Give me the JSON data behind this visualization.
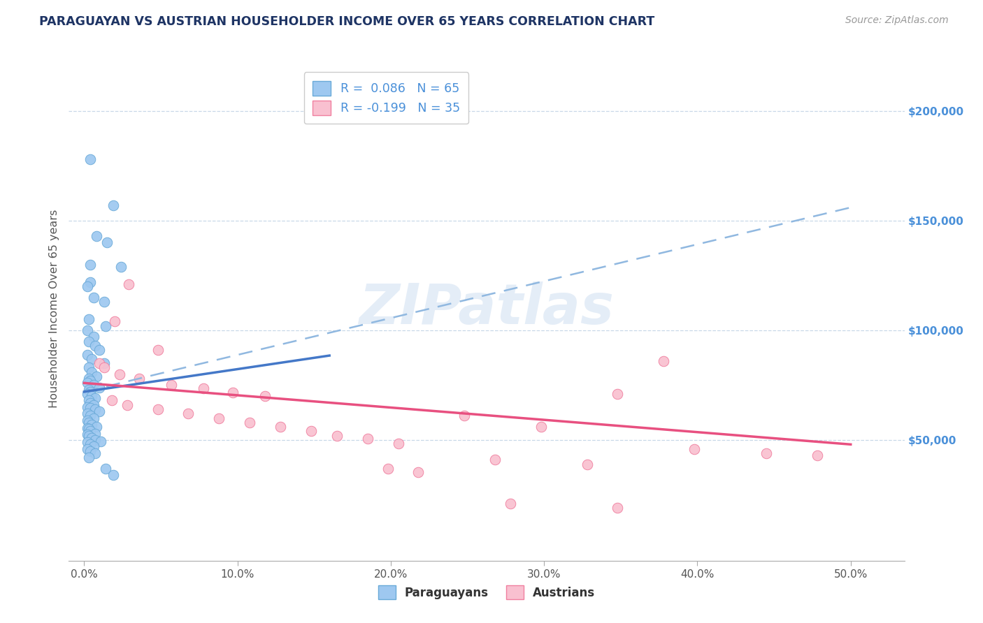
{
  "title": "PARAGUAYAN VS AUSTRIAN HOUSEHOLDER INCOME OVER 65 YEARS CORRELATION CHART",
  "source": "Source: ZipAtlas.com",
  "ylabel": "Householder Income Over 65 years",
  "xtick_labels": [
    "0.0%",
    "10.0%",
    "20.0%",
    "30.0%",
    "40.0%",
    "50.0%"
  ],
  "xtick_vals": [
    0.0,
    0.1,
    0.2,
    0.3,
    0.4,
    0.5
  ],
  "ytick_labels": [
    "$50,000",
    "$100,000",
    "$150,000",
    "$200,000"
  ],
  "ytick_vals": [
    50000,
    100000,
    150000,
    200000
  ],
  "ylim": [
    -5000,
    225000
  ],
  "xlim": [
    -0.01,
    0.535
  ],
  "blue_scatter_color": "#9ec8f0",
  "blue_edge_color": "#6aaad8",
  "pink_scatter_color": "#f9c0d0",
  "pink_edge_color": "#f080a0",
  "blue_solid_color": "#4478c8",
  "blue_dash_color": "#90b8e0",
  "pink_solid_color": "#e85080",
  "grid_color": "#c8d8e8",
  "bg_color": "#ffffff",
  "title_color": "#1e3464",
  "right_tick_color": "#4a90d9",
  "watermark": "ZIPatlas",
  "legend_label_blue": "R =  0.086   N = 65",
  "legend_label_pink": "R = -0.199   N = 35",
  "bottom_label_blue": "Paraguayans",
  "bottom_label_pink": "Austrians",
  "blue_solid_line": [
    [
      0.0,
      72000
    ],
    [
      0.16,
      88500
    ]
  ],
  "blue_dash_line": [
    [
      0.0,
      72000
    ],
    [
      0.5,
      156000
    ]
  ],
  "pink_line": [
    [
      0.0,
      76000
    ],
    [
      0.5,
      48000
    ]
  ],
  "blue_pts": [
    [
      0.004,
      178000
    ],
    [
      0.019,
      157000
    ],
    [
      0.008,
      143000
    ],
    [
      0.015,
      140000
    ],
    [
      0.004,
      130000
    ],
    [
      0.024,
      129000
    ],
    [
      0.004,
      122000
    ],
    [
      0.002,
      120000
    ],
    [
      0.006,
      115000
    ],
    [
      0.013,
      113000
    ],
    [
      0.003,
      105000
    ],
    [
      0.014,
      102000
    ],
    [
      0.002,
      100000
    ],
    [
      0.006,
      97000
    ],
    [
      0.003,
      95000
    ],
    [
      0.007,
      93000
    ],
    [
      0.01,
      91000
    ],
    [
      0.002,
      89000
    ],
    [
      0.005,
      87000
    ],
    [
      0.013,
      85000
    ],
    [
      0.003,
      83000
    ],
    [
      0.005,
      81000
    ],
    [
      0.008,
      79000
    ],
    [
      0.003,
      78000
    ],
    [
      0.004,
      77000
    ],
    [
      0.002,
      76000
    ],
    [
      0.006,
      75000
    ],
    [
      0.01,
      74000
    ],
    [
      0.003,
      73000
    ],
    [
      0.004,
      72000
    ],
    [
      0.002,
      71000
    ],
    [
      0.005,
      70000
    ],
    [
      0.007,
      69000
    ],
    [
      0.003,
      68000
    ],
    [
      0.004,
      67000
    ],
    [
      0.006,
      66000
    ],
    [
      0.002,
      65000
    ],
    [
      0.004,
      64500
    ],
    [
      0.007,
      64000
    ],
    [
      0.01,
      63000
    ],
    [
      0.002,
      62000
    ],
    [
      0.004,
      61000
    ],
    [
      0.006,
      60000
    ],
    [
      0.002,
      59000
    ],
    [
      0.003,
      58000
    ],
    [
      0.005,
      57000
    ],
    [
      0.008,
      56000
    ],
    [
      0.002,
      55500
    ],
    [
      0.003,
      55000
    ],
    [
      0.004,
      54000
    ],
    [
      0.007,
      53000
    ],
    [
      0.002,
      52500
    ],
    [
      0.003,
      52000
    ],
    [
      0.005,
      51000
    ],
    [
      0.007,
      50000
    ],
    [
      0.011,
      49500
    ],
    [
      0.002,
      49000
    ],
    [
      0.004,
      48000
    ],
    [
      0.006,
      47000
    ],
    [
      0.002,
      46000
    ],
    [
      0.004,
      45000
    ],
    [
      0.007,
      44000
    ],
    [
      0.003,
      42000
    ],
    [
      0.014,
      37000
    ],
    [
      0.019,
      34000
    ]
  ],
  "pink_pts": [
    [
      0.029,
      121000
    ],
    [
      0.02,
      104000
    ],
    [
      0.048,
      91000
    ],
    [
      0.01,
      85000
    ],
    [
      0.013,
      83000
    ],
    [
      0.023,
      80000
    ],
    [
      0.036,
      78000
    ],
    [
      0.057,
      75000
    ],
    [
      0.078,
      73500
    ],
    [
      0.097,
      71500
    ],
    [
      0.118,
      70000
    ],
    [
      0.018,
      68000
    ],
    [
      0.028,
      66000
    ],
    [
      0.048,
      64000
    ],
    [
      0.068,
      62000
    ],
    [
      0.088,
      60000
    ],
    [
      0.108,
      58000
    ],
    [
      0.128,
      56000
    ],
    [
      0.148,
      54000
    ],
    [
      0.165,
      52000
    ],
    [
      0.185,
      50500
    ],
    [
      0.205,
      48500
    ],
    [
      0.348,
      71000
    ],
    [
      0.378,
      86000
    ],
    [
      0.248,
      61000
    ],
    [
      0.298,
      56000
    ],
    [
      0.268,
      41000
    ],
    [
      0.328,
      39000
    ],
    [
      0.198,
      37000
    ],
    [
      0.218,
      35500
    ],
    [
      0.398,
      46000
    ],
    [
      0.445,
      44000
    ],
    [
      0.278,
      21000
    ],
    [
      0.348,
      19000
    ],
    [
      0.478,
      43000
    ]
  ]
}
